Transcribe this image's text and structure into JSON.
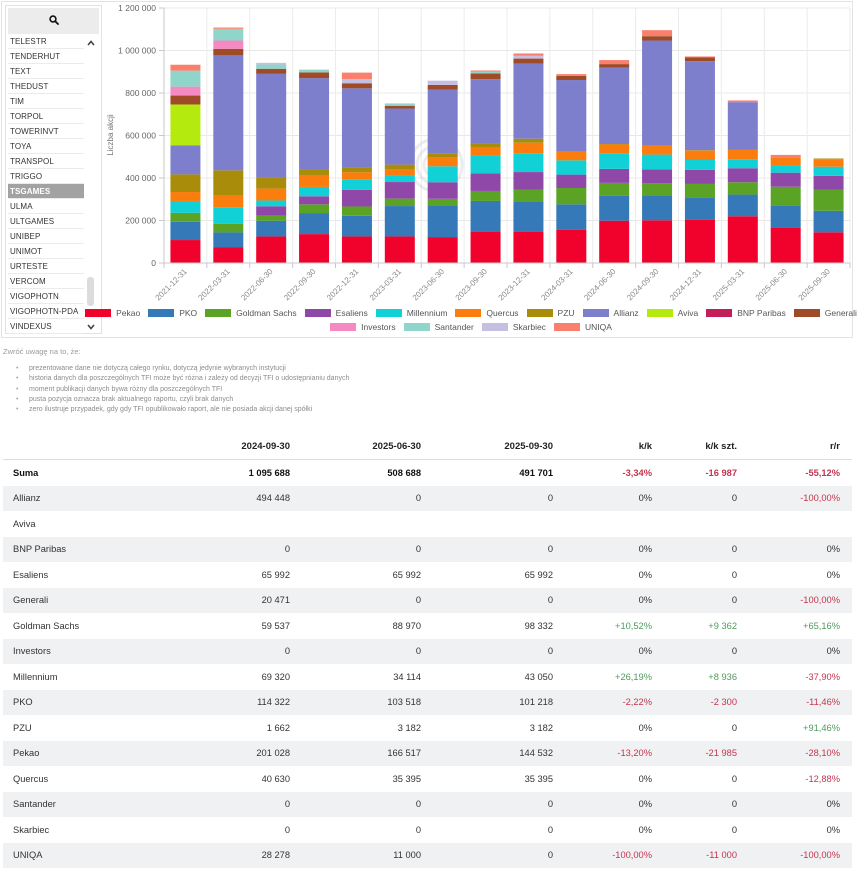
{
  "sidebar": {
    "items": [
      "TELESTR",
      "TENDERHUT",
      "TEXT",
      "THEDUST",
      "TIM",
      "TORPOL",
      "TOWERINVT",
      "TOYA",
      "TRANSPOL",
      "TRIGGO",
      "TSGAMES",
      "ULMA",
      "ULTGAMES",
      "UNIBEP",
      "UNIMOT",
      "URTESTE",
      "VERCOM",
      "VIGOPHOTN",
      "VIGOPHOTN-PDA",
      "VINDEXUS"
    ],
    "selected": "TSGAMES",
    "icons": {
      "search": "search-icon",
      "scroll_up": "chevron-up-icon",
      "scroll_down": "chevron-down-icon"
    }
  },
  "chart_data": {
    "type": "bar",
    "stacked": true,
    "title": "",
    "xlabel": "",
    "ylabel": "Liczba akcji",
    "ylim": [
      0,
      1200000
    ],
    "y_ticks": [
      0,
      200000,
      400000,
      600000,
      800000,
      1000000,
      1200000
    ],
    "y_tick_labels": [
      "0",
      "200 000",
      "400 000",
      "600 000",
      "800 000",
      "1 000 000",
      "1 200 000"
    ],
    "grid": true,
    "legend_position": "bottom",
    "categories": [
      "2021-12-31",
      "2022-03-31",
      "2022-06-30",
      "2022-09-30",
      "2022-12-31",
      "2023-03-31",
      "2023-06-30",
      "2023-09-30",
      "2023-12-31",
      "2024-03-31",
      "2024-06-30",
      "2024-09-30",
      "2024-12-31",
      "2025-03-31",
      "2025-06-30",
      "2025-09-30"
    ],
    "series": [
      {
        "name": "Pekao",
        "color": "#f0022c",
        "values": [
          108000,
          73000,
          125000,
          136000,
          125000,
          125000,
          122000,
          146000,
          146000,
          157000,
          199000,
          201028,
          204000,
          220000,
          166517,
          144532
        ]
      },
      {
        "name": "PKO",
        "color": "#3579b8",
        "values": [
          86000,
          71000,
          74000,
          99000,
          97000,
          143000,
          149000,
          146000,
          144000,
          119000,
          118000,
          114322,
          105000,
          102000,
          103518,
          101218
        ]
      },
      {
        "name": "Goldman Sachs",
        "color": "#5ba325",
        "values": [
          42000,
          41000,
          24000,
          41000,
          44000,
          35000,
          31000,
          47000,
          56000,
          77000,
          60000,
          59537,
          63000,
          58000,
          88970,
          98332
        ]
      },
      {
        "name": "Esaliens",
        "color": "#9048a8",
        "values": [
          0,
          0,
          44000,
          38000,
          78000,
          78000,
          78000,
          82000,
          82000,
          63000,
          66000,
          65992,
          66000,
          66000,
          65992,
          65992
        ]
      },
      {
        "name": "Millennium",
        "color": "#11d0d6",
        "values": [
          56000,
          77000,
          27000,
          44000,
          50000,
          31000,
          75000,
          83000,
          86000,
          67000,
          71000,
          69320,
          49000,
          42000,
          34114,
          43050
        ]
      },
      {
        "name": "Quercus",
        "color": "#fb7d0d",
        "values": [
          42000,
          56000,
          56000,
          53000,
          33000,
          27000,
          42000,
          39000,
          52000,
          42000,
          44000,
          40630,
          42000,
          44000,
          35395,
          35395
        ]
      },
      {
        "name": "PZU",
        "color": "#a88c0a",
        "values": [
          83000,
          118000,
          52000,
          31000,
          22000,
          24000,
          19000,
          19000,
          19000,
          2000,
          2000,
          1662,
          2000,
          2000,
          3182,
          3182
        ]
      },
      {
        "name": "Allianz",
        "color": "#7e7fcc",
        "values": [
          136000,
          541000,
          488000,
          428000,
          373000,
          264000,
          300000,
          303000,
          353000,
          334000,
          359000,
          494448,
          419000,
          223000,
          0,
          0
        ]
      },
      {
        "name": "Aviva",
        "color": "#b5ea0f",
        "values": [
          193000,
          null,
          null,
          null,
          null,
          null,
          null,
          null,
          null,
          null,
          null,
          null,
          null,
          null,
          null,
          null
        ]
      },
      {
        "name": "BNP Paribas",
        "color": "#c21e5a",
        "values": [
          0,
          0,
          0,
          0,
          0,
          0,
          0,
          0,
          0,
          0,
          0,
          0,
          0,
          0,
          0,
          0
        ]
      },
      {
        "name": "Generali",
        "color": "#a04b27",
        "values": [
          42000,
          31000,
          24000,
          27000,
          24000,
          13000,
          22000,
          27000,
          24000,
          20000,
          17000,
          20471,
          17000,
          0,
          0,
          0
        ]
      },
      {
        "name": "Investors",
        "color": "#f58ac3",
        "values": [
          42000,
          39000,
          0,
          0,
          0,
          0,
          0,
          0,
          0,
          0,
          0,
          0,
          0,
          0,
          0,
          0
        ]
      },
      {
        "name": "Santander",
        "color": "#90d5c9",
        "values": [
          75000,
          55000,
          20000,
          13000,
          0,
          11000,
          0,
          8000,
          0,
          0,
          0,
          0,
          0,
          0,
          0,
          0
        ]
      },
      {
        "name": "Skarbiec",
        "color": "#c5c0e2",
        "values": [
          0,
          0,
          8000,
          0,
          19000,
          0,
          20000,
          0,
          13000,
          0,
          0,
          0,
          0,
          0,
          0,
          0
        ]
      },
      {
        "name": "UNIQA",
        "color": "#f9806f",
        "values": [
          28000,
          6000,
          0,
          0,
          31000,
          0,
          0,
          6000,
          11000,
          8000,
          19000,
          28278,
          5000,
          8000,
          11000,
          0
        ]
      }
    ]
  },
  "notes": {
    "heading": "Zwróć uwagę na to, że:",
    "bullet": "•",
    "items": [
      "prezentowane dane nie dotyczą całego rynku, dotyczą jedynie wybranych instytucji",
      "historia danych dla poszczególnych TFI może być różna i zależy od decyzji TFI o udostępnianiu danych",
      "moment publikacji danych bywa różny dla poszczególnych TFI",
      "pusta pozycja oznacza brak aktualnego raportu, czyli brak danych",
      "zero ilustruje przypadek, gdy gdy TFI opublikowało raport, ale nie posiada akcji danej spółki"
    ]
  },
  "table": {
    "columns": [
      "",
      "2024-09-30",
      "2025-06-30",
      "2025-09-30",
      "k/k",
      "k/k szt.",
      "r/r"
    ],
    "rows": [
      [
        "Suma",
        "1 095 688",
        "508 688",
        "491 701",
        "-3,34%",
        "-16 987",
        "-55,12%"
      ],
      [
        "Allianz",
        "494 448",
        "0",
        "0",
        "0%",
        "0",
        "-100,00%"
      ],
      [
        "Aviva",
        "",
        "",
        "",
        "",
        "",
        ""
      ],
      [
        "BNP Paribas",
        "0",
        "0",
        "0",
        "0%",
        "0",
        "0%"
      ],
      [
        "Esaliens",
        "65 992",
        "65 992",
        "65 992",
        "0%",
        "0",
        "0%"
      ],
      [
        "Generali",
        "20 471",
        "0",
        "0",
        "0%",
        "0",
        "-100,00%"
      ],
      [
        "Goldman Sachs",
        "59 537",
        "88 970",
        "98 332",
        "+10,52%",
        "+9 362",
        "+65,16%"
      ],
      [
        "Investors",
        "0",
        "0",
        "0",
        "0%",
        "0",
        "0%"
      ],
      [
        "Millennium",
        "69 320",
        "34 114",
        "43 050",
        "+26,19%",
        "+8 936",
        "-37,90%"
      ],
      [
        "PKO",
        "114 322",
        "103 518",
        "101 218",
        "-2,22%",
        "-2 300",
        "-11,46%"
      ],
      [
        "PZU",
        "1 662",
        "3 182",
        "3 182",
        "0%",
        "0",
        "+91,46%"
      ],
      [
        "Pekao",
        "201 028",
        "166 517",
        "144 532",
        "-13,20%",
        "-21 985",
        "-28,10%"
      ],
      [
        "Quercus",
        "40 630",
        "35 395",
        "35 395",
        "0%",
        "0",
        "-12,88%"
      ],
      [
        "Santander",
        "0",
        "0",
        "0",
        "0%",
        "0",
        "0%"
      ],
      [
        "Skarbiec",
        "0",
        "0",
        "0",
        "0%",
        "0",
        "0%"
      ],
      [
        "UNIQA",
        "28 278",
        "11 000",
        "0",
        "-100,00%",
        "-11 000",
        "-100,00%"
      ]
    ]
  },
  "colors": {
    "negative": "#c4354f",
    "positive": "#4f9a5f",
    "selected_item_bg": "#a2a2a2",
    "stripe": "#eff1f3"
  }
}
